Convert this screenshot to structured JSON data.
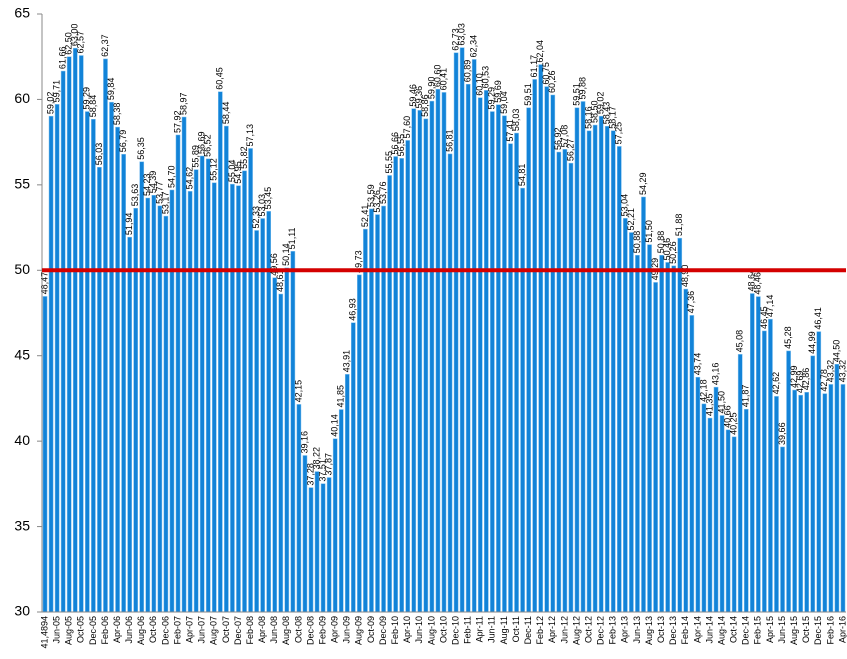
{
  "chart_data": {
    "type": "bar",
    "categories": [
      "41,4894",
      null,
      "Jun-05",
      null,
      "Aug-05",
      null,
      "Oct-05",
      null,
      "Dec-05",
      null,
      "Feb-06",
      null,
      "Apr-06",
      null,
      "Jun-06",
      null,
      "Aug-06",
      null,
      "Oct-06",
      null,
      "Dec-06",
      null,
      "Feb-07",
      null,
      "Apr-07",
      null,
      "Jun-07",
      null,
      "Aug-07",
      null,
      "Oct-07",
      null,
      "Dec-07",
      null,
      "Feb-08",
      null,
      "Apr-08",
      null,
      "Jun-08",
      null,
      "Aug-08",
      null,
      "Oct-08",
      null,
      "Dec-08",
      null,
      "Feb-09",
      null,
      "Apr-09",
      null,
      "Jun-09",
      null,
      "Aug-09",
      null,
      "Oct-09",
      null,
      "Dec-09",
      null,
      "Feb-10",
      null,
      "Apr-10",
      null,
      "Jun-10",
      null,
      "Aug-10",
      null,
      "Oct-10",
      null,
      "Dec-10",
      null,
      "Feb-11",
      null,
      "Apr-11",
      null,
      "Jun-11",
      null,
      "Aug-11",
      null,
      "Oct-11",
      null,
      "Dec-11",
      null,
      "Feb-12",
      null,
      "Apr-12",
      null,
      "Jun-12",
      null,
      "Aug-12",
      null,
      "Oct-12",
      null,
      "Dec-12",
      null,
      "Feb-13",
      null,
      "Apr-13",
      null,
      "Jun-13",
      null,
      "Aug-13",
      null,
      "Oct-13",
      null,
      "Dec-13",
      null,
      "Feb-14",
      null,
      "Apr-14",
      null,
      "Jun-14",
      null,
      "Aug-14",
      null,
      "Oct-14",
      null,
      "Dec-14",
      null,
      "Feb-15",
      null,
      "Apr-15",
      null,
      "Jun-15",
      null,
      "Aug-15",
      null,
      "Oct-15",
      null,
      "Dec-15",
      null,
      "Feb-16",
      null,
      "Apr-16"
    ],
    "values": [
      48.47,
      59.02,
      59.71,
      61.66,
      62.5,
      63.0,
      62.57,
      59.29,
      58.84,
      56.03,
      62.37,
      59.84,
      58.38,
      56.79,
      51.94,
      53.63,
      56.35,
      54.23,
      54.39,
      53.77,
      53.17,
      54.7,
      57.92,
      58.97,
      54.62,
      55.89,
      56.69,
      56.52,
      55.12,
      60.45,
      58.44,
      55.04,
      54.95,
      55.82,
      57.13,
      52.33,
      53.03,
      53.45,
      49.56,
      48.61,
      50.14,
      51.11,
      42.15,
      39.16,
      37.28,
      38.22,
      37.51,
      37.87,
      40.14,
      41.85,
      43.91,
      46.93,
      49.73,
      52.41,
      53.59,
      53.26,
      53.76,
      55.55,
      56.66,
      56.55,
      57.6,
      59.46,
      59.36,
      58.86,
      59.9,
      60.6,
      60.41,
      56.81,
      62.73,
      63.03,
      60.89,
      62.34,
      60.1,
      60.53,
      59.29,
      59.69,
      59.04,
      57.41,
      58.03,
      54.81,
      59.51,
      61.17,
      62.04,
      60.75,
      60.26,
      56.92,
      57.08,
      56.27,
      59.51,
      59.88,
      58.16,
      58.5,
      59.02,
      58.43,
      58.17,
      57.25,
      53.04,
      52.21,
      50.88,
      54.29,
      51.5,
      49.29,
      50.88,
      50.46,
      50.26,
      51.88,
      48.9,
      47.36,
      43.74,
      42.18,
      41.35,
      43.16,
      41.5,
      40.66,
      40.25,
      45.08,
      41.87,
      48.64,
      48.46,
      46.45,
      47.14,
      42.62,
      39.66,
      45.28,
      42.99,
      42.69,
      42.86,
      44.99,
      46.41,
      42.78,
      43.32,
      44.5,
      43.32
    ],
    "value_labels": [
      "48,47",
      "59,02",
      "59,71",
      "61,66",
      "62,50",
      "63,00",
      "62,57",
      "59,29",
      "58,84",
      "56,03",
      "62,37",
      "59,84",
      "58,38",
      "56,79",
      "51,94",
      "53,63",
      "56,35",
      "54,23",
      "54,39",
      "53,77",
      "53,17",
      "54,70",
      "57,92",
      "58,97",
      "54,62",
      "55,89",
      "56,69",
      "56,52",
      "55,12",
      "60,45",
      "58,44",
      "55,04",
      "54,95",
      "55,82",
      "57,13",
      "52,33",
      "53,03",
      "53,45",
      "49,56",
      "48,61",
      "50,14",
      "51,11",
      "42,15",
      "39,16",
      "37,28",
      "38,22",
      "37,51",
      "37,87",
      "40,14",
      "41,85",
      "43,91",
      "46,93",
      "49,73",
      "52,41",
      "53,59",
      "53,26",
      "53,76",
      "55,55",
      "56,66",
      "56,55",
      "57,60",
      "59,46",
      "59,36",
      "58,86",
      "59,90",
      "60,60",
      "60,41",
      "56,81",
      "62,73",
      "63,03",
      "60,89",
      "62,34",
      "60,10",
      "60,53",
      "59,29",
      "59,69",
      "59,04",
      "57,41",
      "58,03",
      "54,81",
      "59,51",
      "61,17",
      "62,04",
      "60,75",
      "60,26",
      "56,92",
      "57,08",
      "56,27",
      "59,51",
      "59,88",
      "58,16",
      "58,50",
      "59,02",
      "58,43",
      "58,17",
      "57,25",
      "53,04",
      "52,21",
      "50,88",
      "54,29",
      "51,50",
      "49,29",
      "50,88",
      "50,46",
      "50,26",
      "51,88",
      "48,90",
      "47,36",
      "43,74",
      "42,18",
      "41,35",
      "43,16",
      "41,50",
      "40,66",
      "40,25",
      "45,08",
      "41,87",
      "48,64",
      "48,46",
      "46,45",
      "47,14",
      "42,62",
      "39,66",
      "45,28",
      "42,99",
      "42,69",
      "42,86",
      "44,99",
      "46,41",
      "42,78",
      "43,32",
      "44,50",
      "43,32"
    ],
    "color": "#1283d8",
    "ylim": [
      30,
      65
    ],
    "yticks": [
      30,
      35,
      40,
      45,
      50,
      55,
      60,
      65
    ],
    "grid": false,
    "reference_line": {
      "value": 50,
      "color": "#d40000"
    }
  }
}
